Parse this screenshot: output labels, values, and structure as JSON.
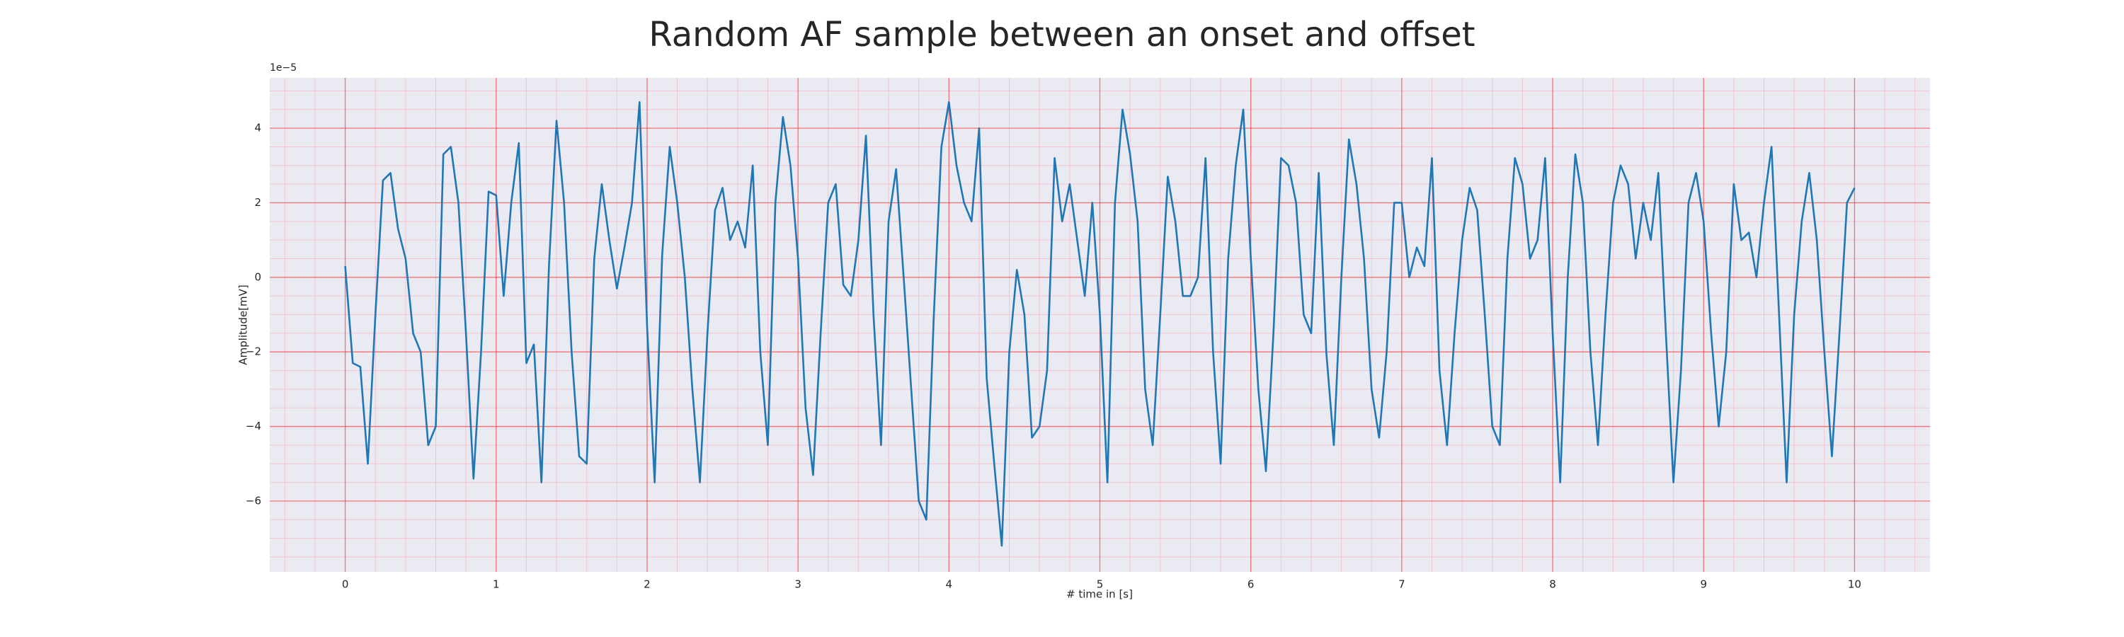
{
  "chart_data": {
    "type": "line",
    "title": "Random AF sample between an onset and offset",
    "xlabel": "# time in [s]",
    "ylabel": "Amplitude[mV]",
    "y_offset_label": "1e−5",
    "color": "#1f77b4",
    "xlim": [
      -0.5,
      10.5
    ],
    "ylim": [
      -7.9,
      5.35
    ],
    "xticks": [
      0,
      1,
      2,
      3,
      4,
      5,
      6,
      7,
      8,
      9,
      10
    ],
    "yticks": [
      {
        "value": -6,
        "label": "−6"
      },
      {
        "value": -4,
        "label": "−4"
      },
      {
        "value": -2,
        "label": "−2"
      },
      0,
      2,
      4
    ],
    "grid": true,
    "minor_grid": true,
    "minor_divisions": {
      "x": 5,
      "y": 4
    },
    "x": [
      0,
      0.05,
      0.1,
      0.15,
      0.2,
      0.25,
      0.3,
      0.35,
      0.4,
      0.45,
      0.5,
      0.55,
      0.6,
      0.65,
      0.7,
      0.75,
      0.8,
      0.85,
      0.9,
      0.95,
      1,
      1.05,
      1.1,
      1.15,
      1.2,
      1.25,
      1.3,
      1.35,
      1.4,
      1.45,
      1.5,
      1.55,
      1.6,
      1.65,
      1.7,
      1.75,
      1.8,
      1.85,
      1.9,
      1.95,
      2,
      2.05,
      2.1,
      2.15,
      2.2,
      2.25,
      2.3,
      2.35,
      2.4,
      2.45,
      2.5,
      2.55,
      2.6,
      2.65,
      2.7,
      2.75,
      2.8,
      2.85,
      2.9,
      2.95,
      3,
      3.05,
      3.1,
      3.15,
      3.2,
      3.25,
      3.3,
      3.35,
      3.4,
      3.45,
      3.5,
      3.55,
      3.6,
      3.65,
      3.7,
      3.75,
      3.8,
      3.85,
      3.9,
      3.95,
      4,
      4.05,
      4.1,
      4.15,
      4.2,
      4.25,
      4.3,
      4.35,
      4.4,
      4.45,
      4.5,
      4.55,
      4.6,
      4.65,
      4.7,
      4.75,
      4.8,
      4.85,
      4.9,
      4.95,
      5,
      5.05,
      5.1,
      5.15,
      5.2,
      5.25,
      5.3,
      5.35,
      5.4,
      5.45,
      5.5,
      5.55,
      5.6,
      5.65,
      5.7,
      5.75,
      5.8,
      5.85,
      5.9,
      5.95,
      6,
      6.05,
      6.1,
      6.15,
      6.2,
      6.25,
      6.3,
      6.35,
      6.4,
      6.45,
      6.5,
      6.55,
      6.6,
      6.65,
      6.7,
      6.75,
      6.8,
      6.85,
      6.9,
      6.95,
      7,
      7.05,
      7.1,
      7.15,
      7.2,
      7.25,
      7.3,
      7.35,
      7.4,
      7.45,
      7.5,
      7.55,
      7.6,
      7.65,
      7.7,
      7.75,
      7.8,
      7.85,
      7.9,
      7.95,
      8,
      8.05,
      8.1,
      8.15,
      8.2,
      8.25,
      8.3,
      8.35,
      8.4,
      8.45,
      8.5,
      8.55,
      8.6,
      8.65,
      8.7,
      8.75,
      8.8,
      8.85,
      8.9,
      8.95,
      9,
      9.05,
      9.1,
      9.15,
      9.2,
      9.25,
      9.3,
      9.35,
      9.4,
      9.45,
      9.5,
      9.55,
      9.6,
      9.65,
      9.7,
      9.75,
      9.8,
      9.85,
      9.9,
      9.95,
      10
    ],
    "values": [
      0.3,
      -2.3,
      -2.4,
      -5.0,
      -1.0,
      2.6,
      2.8,
      1.3,
      0.5,
      -1.5,
      -2.0,
      -4.5,
      -4.0,
      3.3,
      3.5,
      2.0,
      -1.5,
      -5.4,
      -2.0,
      2.3,
      2.2,
      -0.5,
      2.0,
      3.6,
      -2.3,
      -1.8,
      -5.5,
      0.3,
      4.2,
      2.0,
      -2.0,
      -4.8,
      -5.0,
      0.5,
      2.5,
      1.0,
      -0.3,
      0.8,
      2.0,
      4.7,
      -1.3,
      -5.5,
      0.6,
      3.5,
      2.0,
      0.0,
      -3.0,
      -5.5,
      -1.5,
      1.8,
      2.4,
      1.0,
      1.5,
      0.8,
      3.0,
      -2.0,
      -4.5,
      2.0,
      4.3,
      3.0,
      0.5,
      -3.5,
      -5.3,
      -1.5,
      2.0,
      2.5,
      -0.2,
      -0.5,
      1.0,
      3.8,
      -1.0,
      -4.5,
      1.5,
      2.9,
      0.0,
      -3.0,
      -6.0,
      -6.5,
      -1.0,
      3.5,
      4.7,
      3.0,
      2.0,
      1.5,
      4.0,
      -2.7,
      -5.0,
      -7.2,
      -2.0,
      0.2,
      -1.0,
      -4.3,
      -4.0,
      -2.5,
      3.2,
      1.5,
      2.5,
      1.0,
      -0.5,
      2.0,
      -1.0,
      -5.5,
      2.0,
      4.5,
      3.3,
      1.5,
      -3.0,
      -4.5,
      -1.0,
      2.7,
      1.5,
      -0.5,
      -0.5,
      0.0,
      3.2,
      -2.0,
      -5.0,
      0.5,
      3.0,
      4.5,
      0.5,
      -3.0,
      -5.2,
      -1.5,
      3.2,
      3.0,
      2.0,
      -1.0,
      -1.5,
      2.8,
      -2.0,
      -4.5,
      0.0,
      3.7,
      2.5,
      0.5,
      -3.0,
      -4.3,
      -2.0,
      2.0,
      2.0,
      0.0,
      0.8,
      0.3,
      3.2,
      -2.5,
      -4.5,
      -1.5,
      1.0,
      2.4,
      1.8,
      -1.0,
      -4.0,
      -4.5,
      0.5,
      3.2,
      2.5,
      0.5,
      1.0,
      3.2,
      -1.5,
      -5.5,
      0.0,
      3.3,
      2.0,
      -2.0,
      -4.5,
      -1.0,
      2.0,
      3.0,
      2.5,
      0.5,
      2.0,
      1.0,
      2.8,
      -1.5,
      -5.5,
      -2.5,
      2.0,
      2.8,
      1.5,
      -1.5,
      -4.0,
      -2.0,
      2.5,
      1.0,
      1.2,
      0.0,
      2.0,
      3.5,
      -1.0,
      -5.5,
      -1.0,
      1.5,
      2.8,
      1.0,
      -2.0,
      -4.8,
      -1.5,
      2.0,
      2.4
    ]
  }
}
